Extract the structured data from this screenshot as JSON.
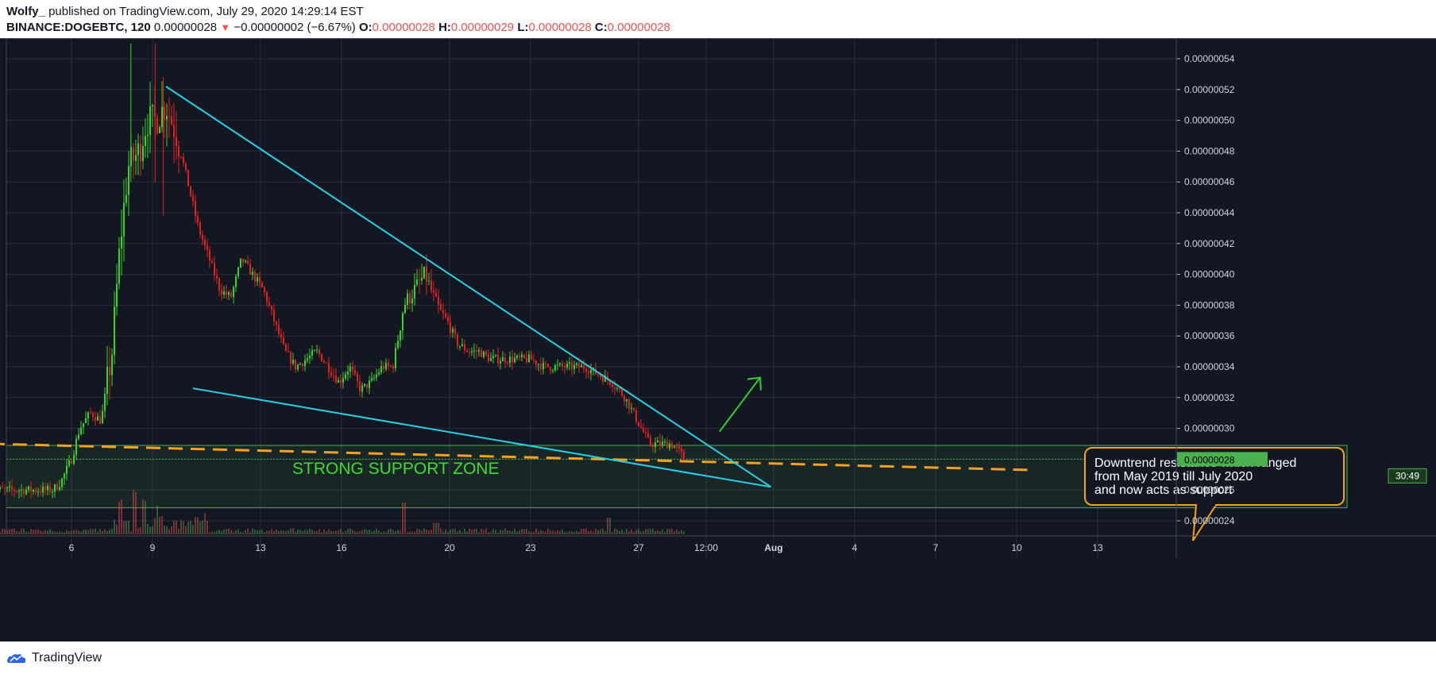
{
  "header": {
    "author": "Wolfy_",
    "published_text": " published on TradingView.com, July 29, 2020 14:29:14 EST",
    "symbol": "BINANCE:DOGEBTC, 120",
    "last_price": "0.00000028",
    "change": "−0.00000002 (−6.67%)",
    "o_label": "O:",
    "o_value": "0.00000028",
    "h_label": "H:",
    "h_value": "0.00000029",
    "l_label": "L:",
    "l_value": "0.00000028",
    "c_label": "C:",
    "c_value": "0.00000028"
  },
  "footer": {
    "brand": "TradingView"
  },
  "colors": {
    "background": "#131722",
    "grid": "#2a2e39",
    "up": "#4caf50",
    "down": "#ef5350",
    "trendline": "#22d3e6",
    "support_line": "#f7a21b",
    "zone_border": "#4caf50",
    "arrow": "#32cd32"
  },
  "chart_data": {
    "type": "candlestick",
    "symbol": "BINANCE:DOGEBTC",
    "interval": "120",
    "y_ticks": [
      "0.00000054",
      "0.00000052",
      "0.00000050",
      "0.00000048",
      "0.00000046",
      "0.00000044",
      "0.00000042",
      "0.00000040",
      "0.00000038",
      "0.00000036",
      "0.00000034",
      "0.00000032",
      "0.00000030",
      "0.00000028",
      "0.00000026",
      "0.00000024"
    ],
    "x_ticks": [
      "6",
      "9",
      "13",
      "16",
      "20",
      "23",
      "27",
      "12:00",
      "Aug",
      "4",
      "7",
      "10",
      "13"
    ],
    "ylim": [
      2.35e-07,
      5.55e-07
    ],
    "current_price_label": "0.00000028",
    "countdown_label": "30:49",
    "path_points": [
      {
        "d": 3.0,
        "p": 26
      },
      {
        "d": 4.5,
        "p": 26
      },
      {
        "d": 5.3,
        "p": 26
      },
      {
        "d": 5.6,
        "p": 26.5
      },
      {
        "d": 6.0,
        "p": 28
      },
      {
        "d": 6.3,
        "p": 30
      },
      {
        "d": 6.7,
        "p": 31
      },
      {
        "d": 7.1,
        "p": 30.5
      },
      {
        "d": 7.5,
        "p": 35
      },
      {
        "d": 7.8,
        "p": 42
      },
      {
        "d": 8.1,
        "p": 47
      },
      {
        "d": 8.5,
        "p": 48
      },
      {
        "d": 8.8,
        "p": 50
      },
      {
        "d": 9.1,
        "p": 50
      },
      {
        "d": 9.5,
        "p": 51
      },
      {
        "d": 9.9,
        "p": 49
      },
      {
        "d": 10.3,
        "p": 46
      },
      {
        "d": 10.7,
        "p": 43
      },
      {
        "d": 11.1,
        "p": 41
      },
      {
        "d": 11.5,
        "p": 39
      },
      {
        "d": 11.9,
        "p": 38.5
      },
      {
        "d": 12.3,
        "p": 41
      },
      {
        "d": 12.7,
        "p": 40
      },
      {
        "d": 13.1,
        "p": 39
      },
      {
        "d": 13.5,
        "p": 37
      },
      {
        "d": 13.9,
        "p": 35
      },
      {
        "d": 14.3,
        "p": 34
      },
      {
        "d": 14.7,
        "p": 34.5
      },
      {
        "d": 15.1,
        "p": 35
      },
      {
        "d": 15.5,
        "p": 34
      },
      {
        "d": 15.9,
        "p": 33
      },
      {
        "d": 16.3,
        "p": 34
      },
      {
        "d": 16.7,
        "p": 32.5
      },
      {
        "d": 17.1,
        "p": 33
      },
      {
        "d": 17.5,
        "p": 34
      },
      {
        "d": 17.9,
        "p": 34
      },
      {
        "d": 18.3,
        "p": 38
      },
      {
        "d": 18.7,
        "p": 39
      },
      {
        "d": 19.1,
        "p": 40
      },
      {
        "d": 19.5,
        "p": 38
      },
      {
        "d": 19.9,
        "p": 37
      },
      {
        "d": 20.3,
        "p": 35.5
      },
      {
        "d": 20.7,
        "p": 35
      },
      {
        "d": 21.1,
        "p": 35
      },
      {
        "d": 21.5,
        "p": 34.5
      },
      {
        "d": 22.0,
        "p": 34.5
      },
      {
        "d": 22.5,
        "p": 34.5
      },
      {
        "d": 23.0,
        "p": 34.5
      },
      {
        "d": 23.5,
        "p": 34
      },
      {
        "d": 24.0,
        "p": 34
      },
      {
        "d": 24.5,
        "p": 34
      },
      {
        "d": 25.0,
        "p": 34
      },
      {
        "d": 25.5,
        "p": 33.5
      },
      {
        "d": 26.0,
        "p": 33
      },
      {
        "d": 26.5,
        "p": 32
      },
      {
        "d": 26.8,
        "p": 31
      },
      {
        "d": 27.1,
        "p": 30
      },
      {
        "d": 27.4,
        "p": 29
      },
      {
        "d": 27.8,
        "p": 29
      },
      {
        "d": 28.2,
        "p": 29
      },
      {
        "d": 28.5,
        "p": 28.5
      },
      {
        "d": 28.7,
        "p": 28
      }
    ],
    "volume_spikes": [
      {
        "d": 7.8,
        "v": 0.9
      },
      {
        "d": 8.3,
        "v": 1.0
      },
      {
        "d": 8.7,
        "v": 0.8
      },
      {
        "d": 9.2,
        "v": 0.5
      },
      {
        "d": 11.0,
        "v": 0.4
      },
      {
        "d": 18.3,
        "v": 0.95
      },
      {
        "d": 19.5,
        "v": 0.35
      },
      {
        "d": 25.9,
        "v": 0.5
      }
    ],
    "annotations": {
      "zone_label": "STRONG SUPPORT ZONE",
      "zone_range": [
        2.5e-07,
        2.9e-07
      ],
      "callout_lines": [
        "Downtrend resistance which ranged",
        "from May 2019 till July 2020",
        "and now acts as support"
      ],
      "upper_trendline": [
        {
          "d": 9.5,
          "p": 52.2
        },
        {
          "d": 31.9,
          "p": 26.2
        }
      ],
      "lower_trendline": [
        {
          "d": 10.5,
          "p": 32.6
        },
        {
          "d": 31.9,
          "p": 26.2
        }
      ],
      "support_line": [
        {
          "d": 3.0,
          "p": 29
        },
        {
          "d": 41.5,
          "p": 27.3
        }
      ],
      "arrow": [
        {
          "d": 30.0,
          "p": 29.8
        },
        {
          "d": 31.5,
          "p": 33.3
        }
      ]
    }
  }
}
